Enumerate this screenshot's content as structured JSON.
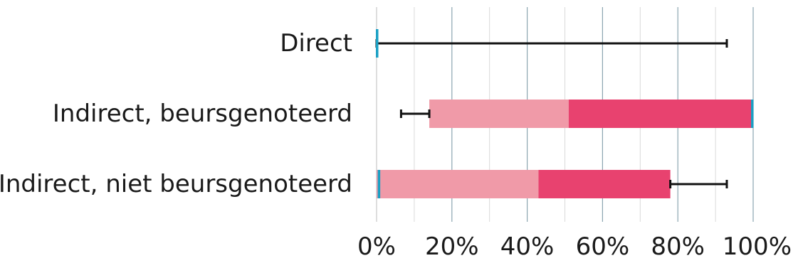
{
  "chart_data": {
    "type": "bar",
    "orientation": "horizontal",
    "stacked": true,
    "categories": [
      "Direct",
      "Indirect, beursgenoteerd",
      "Indirect, niet beursgenoteerd"
    ],
    "series": [
      {
        "color": "#ffffff",
        "values": [
          0,
          14,
          0
        ]
      },
      {
        "color": "#f09aa8",
        "values": [
          0,
          37,
          43
        ]
      },
      {
        "color": "#e8426f",
        "values": [
          0,
          49,
          35
        ]
      }
    ],
    "error_bars": [
      {
        "category": "Direct",
        "from": 0,
        "to": 93
      },
      {
        "category": "Indirect, beursgenoteerd",
        "from": 6.5,
        "to": 14
      },
      {
        "category": "Indirect, niet beursgenoteerd",
        "from": 78,
        "to": 93
      }
    ],
    "markers": [
      {
        "category": "Direct",
        "value": 0,
        "color": "#1aa0c4"
      },
      {
        "category": "Indirect, beursgenoteerd",
        "value": 100,
        "color": "#1aa0c4"
      },
      {
        "category": "Indirect, niet beursgenoteerd",
        "value": 0.5,
        "color": "#1aa0c4"
      }
    ],
    "xlim": [
      0,
      100
    ],
    "xticks": [
      "0%",
      "20%",
      "40%",
      "60%",
      "80%",
      "100%"
    ],
    "grid": true
  }
}
